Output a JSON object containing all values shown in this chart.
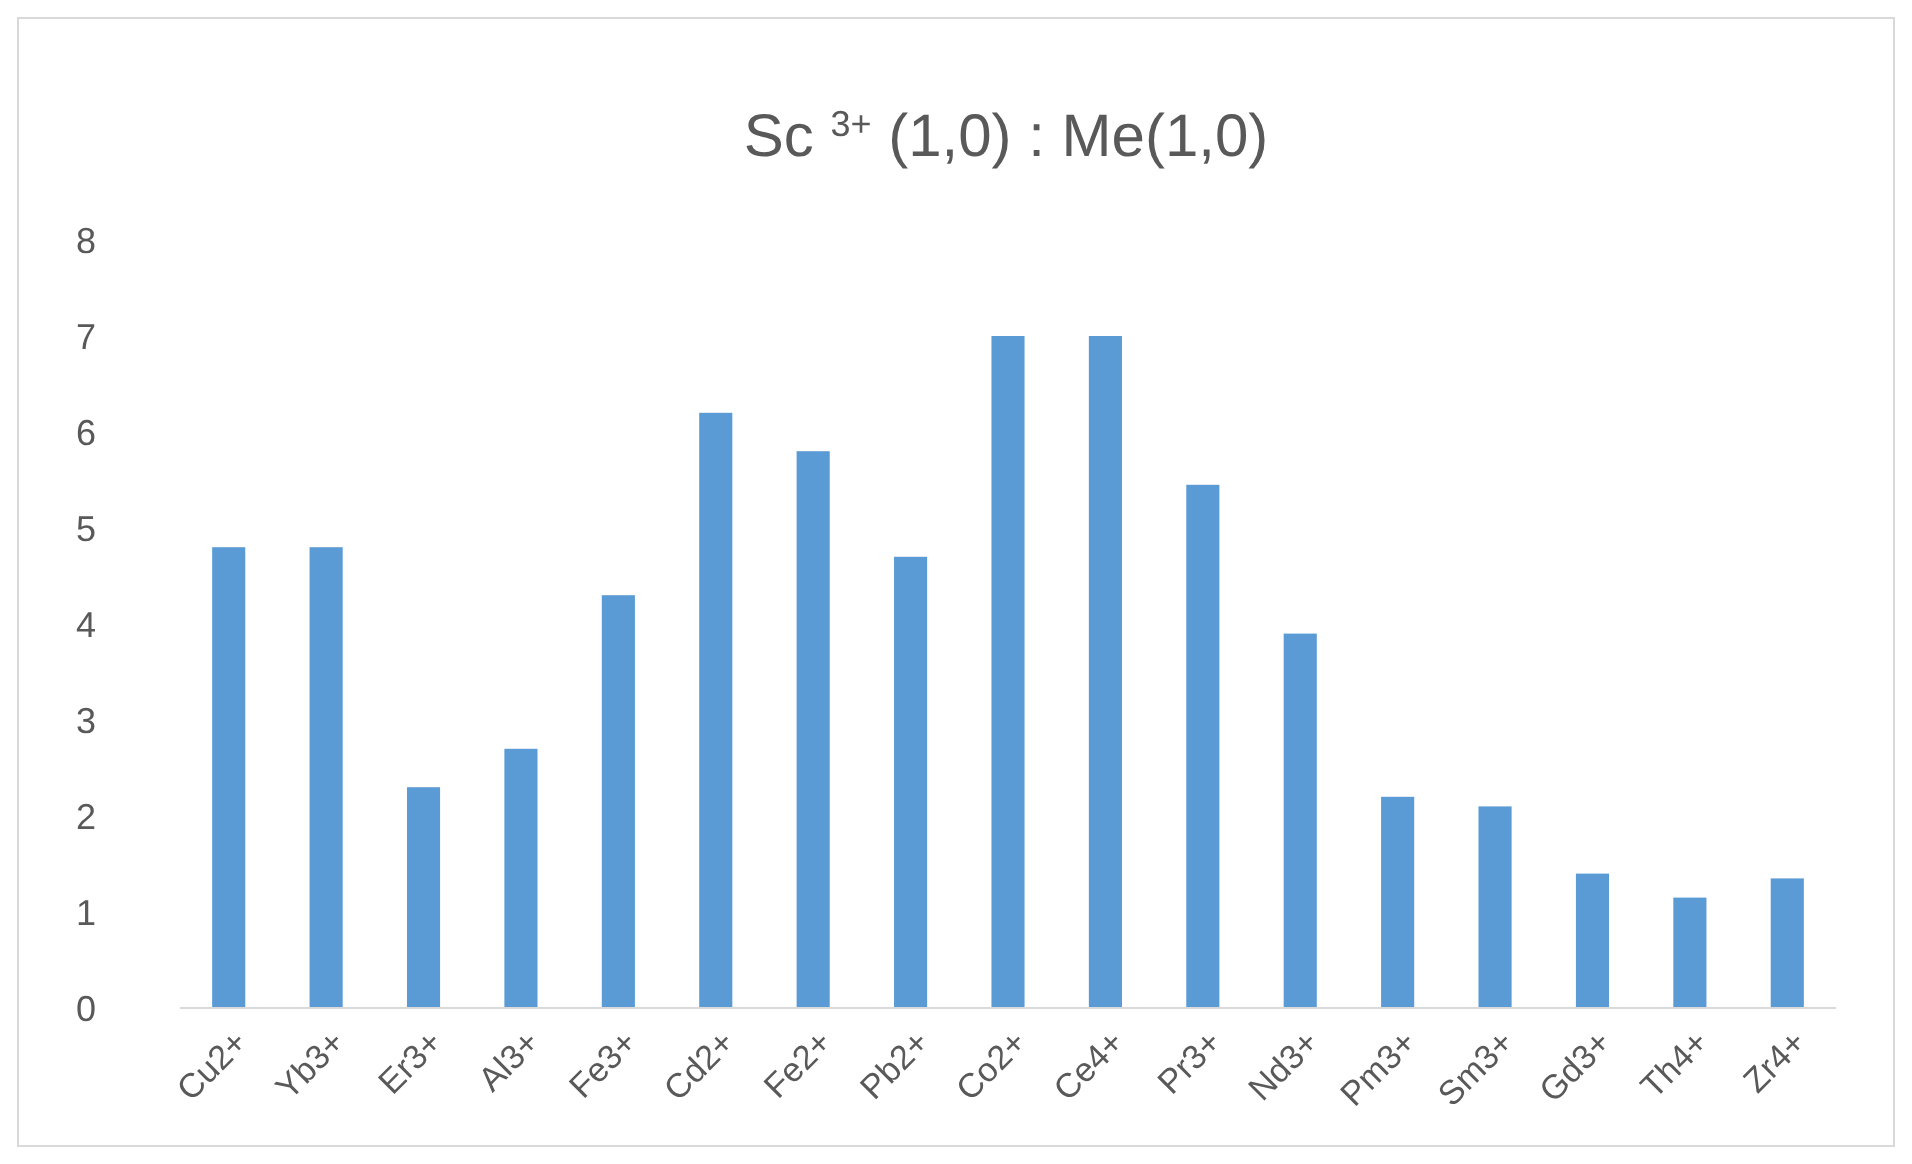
{
  "chart_data": {
    "type": "bar",
    "title": "Sc $^{3+}$ (1,0) : Me(1,0)",
    "categories": [
      "Cu2+",
      "Yb3+",
      "Er3+",
      "Al3+",
      "Fe3+",
      "Cd2+",
      "Fe2+",
      "Pb2+",
      "Co2+",
      "Ce4+",
      "Pr3+",
      "Nd3+",
      "Pm3+",
      "Sm3+",
      "Gd3+",
      "Th4+",
      "Zr4+"
    ],
    "values": [
      4.8,
      4.8,
      2.3,
      2.7,
      4.3,
      6.2,
      5.8,
      4.7,
      7,
      7,
      5.45,
      3.9,
      2.2,
      2.1,
      1.4,
      1.15,
      1.35
    ],
    "color": "#5b9bd5",
    "ylim": [
      0,
      8
    ],
    "yticks": [
      0,
      1,
      2,
      3,
      4,
      5,
      6,
      7,
      8
    ],
    "grid": false
  }
}
